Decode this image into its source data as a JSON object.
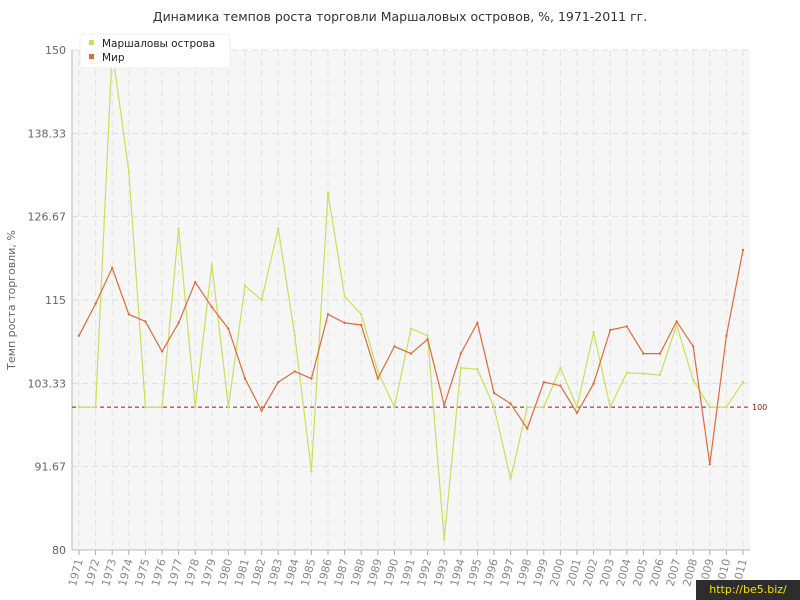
{
  "chart_data": {
    "type": "line",
    "title": "Динамика темпов роста торговли Маршаловых островов, %, 1971-2011 гг.",
    "xlabel": "",
    "ylabel": "Темп роста торговли, %",
    "ylim": [
      80,
      150
    ],
    "yticks": [
      "150",
      "138.33",
      "126.67",
      "115",
      "103.33",
      "91.67",
      "80"
    ],
    "categories": [
      "1971",
      "1972",
      "1973",
      "1974",
      "1975",
      "1976",
      "1977",
      "1978",
      "1979",
      "1980",
      "1981",
      "1982",
      "1983",
      "1984",
      "1985",
      "1986",
      "1987",
      "1988",
      "1989",
      "1990",
      "1991",
      "1992",
      "1993",
      "1994",
      "1995",
      "1996",
      "1997",
      "1998",
      "1999",
      "2000",
      "2001",
      "2002",
      "2003",
      "2004",
      "2005",
      "2006",
      "2007",
      "2008",
      "2009",
      "2010",
      "2011"
    ],
    "series": [
      {
        "name": "Маршаловы острова",
        "color": "#c8e05a",
        "values": [
          100,
          100,
          150,
          133,
          100,
          100,
          125,
          100,
          120,
          100,
          117,
          115,
          125,
          110,
          91,
          130,
          115.5,
          113,
          105,
          100,
          111,
          110,
          81.5,
          105.5,
          105.3,
          100,
          90,
          100,
          100,
          105.5,
          100,
          110.5,
          100,
          104.8,
          104.7,
          104.5,
          111.5,
          103.8,
          100,
          100,
          103.5
        ]
      },
      {
        "name": "Мир",
        "color": "#e06a3a",
        "values": [
          110,
          114.5,
          119.5,
          113,
          112,
          107.8,
          111.8,
          117.5,
          114,
          111,
          104,
          99.5,
          103.5,
          105,
          104,
          113,
          111.8,
          111.5,
          104,
          108.5,
          107.5,
          109.5,
          100.3,
          107.5,
          111.8,
          102,
          100.5,
          97,
          103.5,
          103,
          99.2,
          103.3,
          110.8,
          111.3,
          107.5,
          107.5,
          112,
          108.5,
          92,
          110,
          122
        ]
      }
    ],
    "reference_line": {
      "value": 100,
      "label": "100",
      "color": "#8b1a1a"
    },
    "grid": true,
    "legend": "top-left"
  },
  "watermark": "http://be5.biz/"
}
